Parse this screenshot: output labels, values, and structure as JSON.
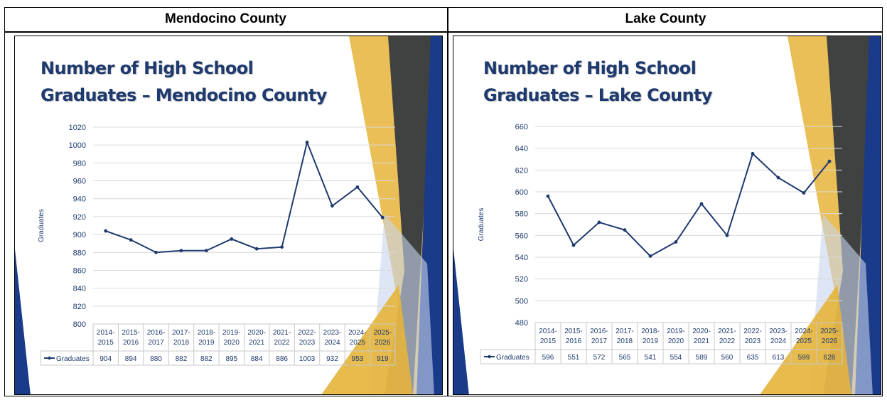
{
  "headers": {
    "left": "Mendocino County",
    "right": "Lake County"
  },
  "colors": {
    "line": "#1f3a6e",
    "title": "#1f3a6e",
    "gold": "#e6b43a",
    "navy": "#1a3a8a",
    "charcoal": "#2e3440",
    "lightblue": "#c8d6ee"
  },
  "chart_data": [
    {
      "type": "line",
      "title_line1": "Number of High School",
      "title_line2": "Graduates – Mendocino County",
      "ylabel": "Graduates",
      "ylim": [
        800,
        1020
      ],
      "yticks": [
        "800",
        "820",
        "840",
        "860",
        "880",
        "900",
        "920",
        "940",
        "960",
        "980",
        "1000",
        "1020"
      ],
      "categories": [
        [
          "2014-",
          "2015"
        ],
        [
          "2015-",
          "2016"
        ],
        [
          "2016-",
          "2017"
        ],
        [
          "2017-",
          "2018"
        ],
        [
          "2018-",
          "2019"
        ],
        [
          "2019-",
          "2020"
        ],
        [
          "2020-",
          "2021"
        ],
        [
          "2021-",
          "2022"
        ],
        [
          "2022-",
          "2023"
        ],
        [
          "2023-",
          "2024"
        ],
        [
          "2024-",
          "2025"
        ],
        [
          "2025-",
          "2026"
        ]
      ],
      "series": [
        {
          "name": "Graduates",
          "values": [
            904,
            894,
            880,
            882,
            882,
            895,
            884,
            886,
            1003,
            932,
            953,
            919
          ]
        }
      ],
      "table_values": [
        "904",
        "894",
        "880",
        "882",
        "882",
        "895",
        "884",
        "886",
        "1003",
        "932",
        "953",
        "919"
      ],
      "grid": true,
      "legend": "data-table"
    },
    {
      "type": "line",
      "title_line1": "Number of High School",
      "title_line2": "Graduates – Lake County",
      "ylabel": "Graduates",
      "ylim": [
        480,
        660
      ],
      "yticks": [
        "480",
        "500",
        "520",
        "540",
        "560",
        "580",
        "600",
        "620",
        "640",
        "660"
      ],
      "categories": [
        [
          "2014-",
          "2015"
        ],
        [
          "2015-",
          "2016"
        ],
        [
          "2016-",
          "2017"
        ],
        [
          "2017-",
          "2018"
        ],
        [
          "2018-",
          "2019"
        ],
        [
          "2019-",
          "2020"
        ],
        [
          "2020-",
          "2021"
        ],
        [
          "2021-",
          "2022"
        ],
        [
          "2022-",
          "2023"
        ],
        [
          "2023-",
          "2024"
        ],
        [
          "2024-",
          "2025"
        ],
        [
          "2025-",
          "2026"
        ]
      ],
      "series": [
        {
          "name": "Graduates",
          "values": [
            596,
            551,
            572,
            565,
            541,
            554,
            589,
            560,
            635,
            613,
            599,
            628
          ]
        }
      ],
      "table_values": [
        "596",
        "551",
        "572",
        "565",
        "541",
        "554",
        "589",
        "560",
        "635",
        "613",
        "599",
        "628"
      ],
      "grid": true,
      "legend": "data-table"
    }
  ]
}
